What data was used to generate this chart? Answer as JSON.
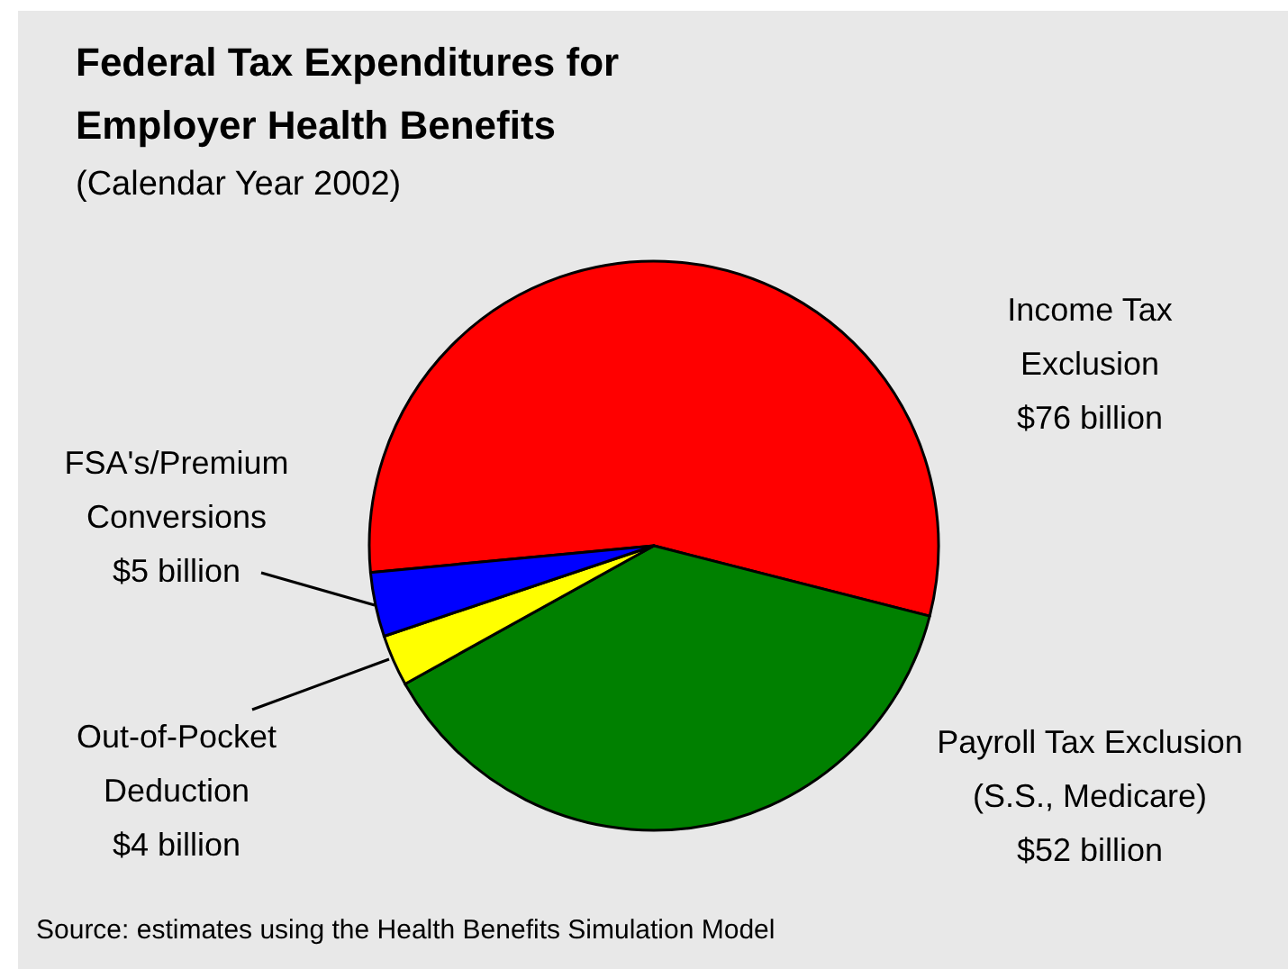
{
  "chart_data": {
    "type": "pie",
    "title": "Federal Tax Expenditures for\nEmployer Health Benefits",
    "subtitle": "(Calendar Year 2002)",
    "categories": [
      "Income Tax\nExclusion",
      "Payroll Tax Exclusion\n(S.S., Medicare)",
      "Out-of-Pocket\nDeduction",
      "FSA's/Premium\nConversions"
    ],
    "values": [
      76,
      52,
      4,
      5
    ],
    "value_labels": [
      "$76 billion",
      "$52 billion",
      "$4 billion",
      "$5 billion"
    ],
    "colors": [
      "#ff0000",
      "#008000",
      "#ffff00",
      "#0000ff"
    ],
    "annotations": [
      "Source: estimates using the Health Benefits Simulation Model"
    ]
  }
}
